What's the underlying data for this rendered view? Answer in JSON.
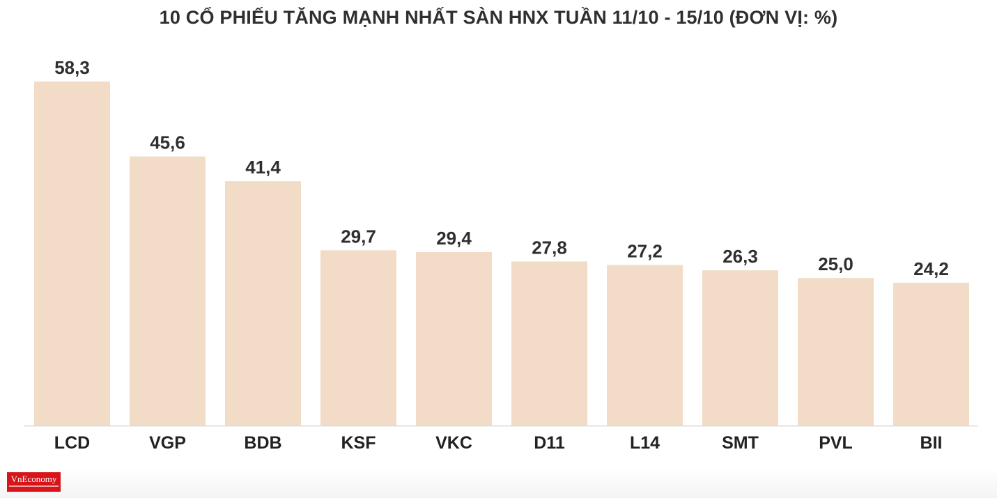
{
  "title": "10 CỔ PHIẾU TĂNG MẠNH NHẤT SÀN HNX TUẦN 11/10 - 15/10 (ĐƠN VỊ: %)",
  "logo": {
    "name": "VnEconomy"
  },
  "colors": {
    "bar": "#f2dcc7",
    "text": "#2f2f2f",
    "axis": "#d8d8d8",
    "logo": "#d7141a"
  },
  "chart_data": {
    "type": "bar",
    "title": "10 CỔ PHIẾU TĂNG MẠNH NHẤT SÀN HNX TUẦN 11/10 - 15/10 (ĐƠN VỊ: %)",
    "categories": [
      "LCD",
      "VGP",
      "BDB",
      "KSF",
      "VKC",
      "D11",
      "L14",
      "SMT",
      "PVL",
      "BII"
    ],
    "values": [
      58.3,
      45.6,
      41.4,
      29.7,
      29.4,
      27.8,
      27.2,
      26.3,
      25.0,
      24.2
    ],
    "value_labels": [
      "58,3",
      "45,6",
      "41,4",
      "29,7",
      "29,4",
      "27,8",
      "27,2",
      "26,3",
      "25,0",
      "24,2"
    ],
    "xlabel": "",
    "ylabel": "",
    "ylim": [
      0,
      58.3
    ],
    "grid": false,
    "legend": "none"
  }
}
